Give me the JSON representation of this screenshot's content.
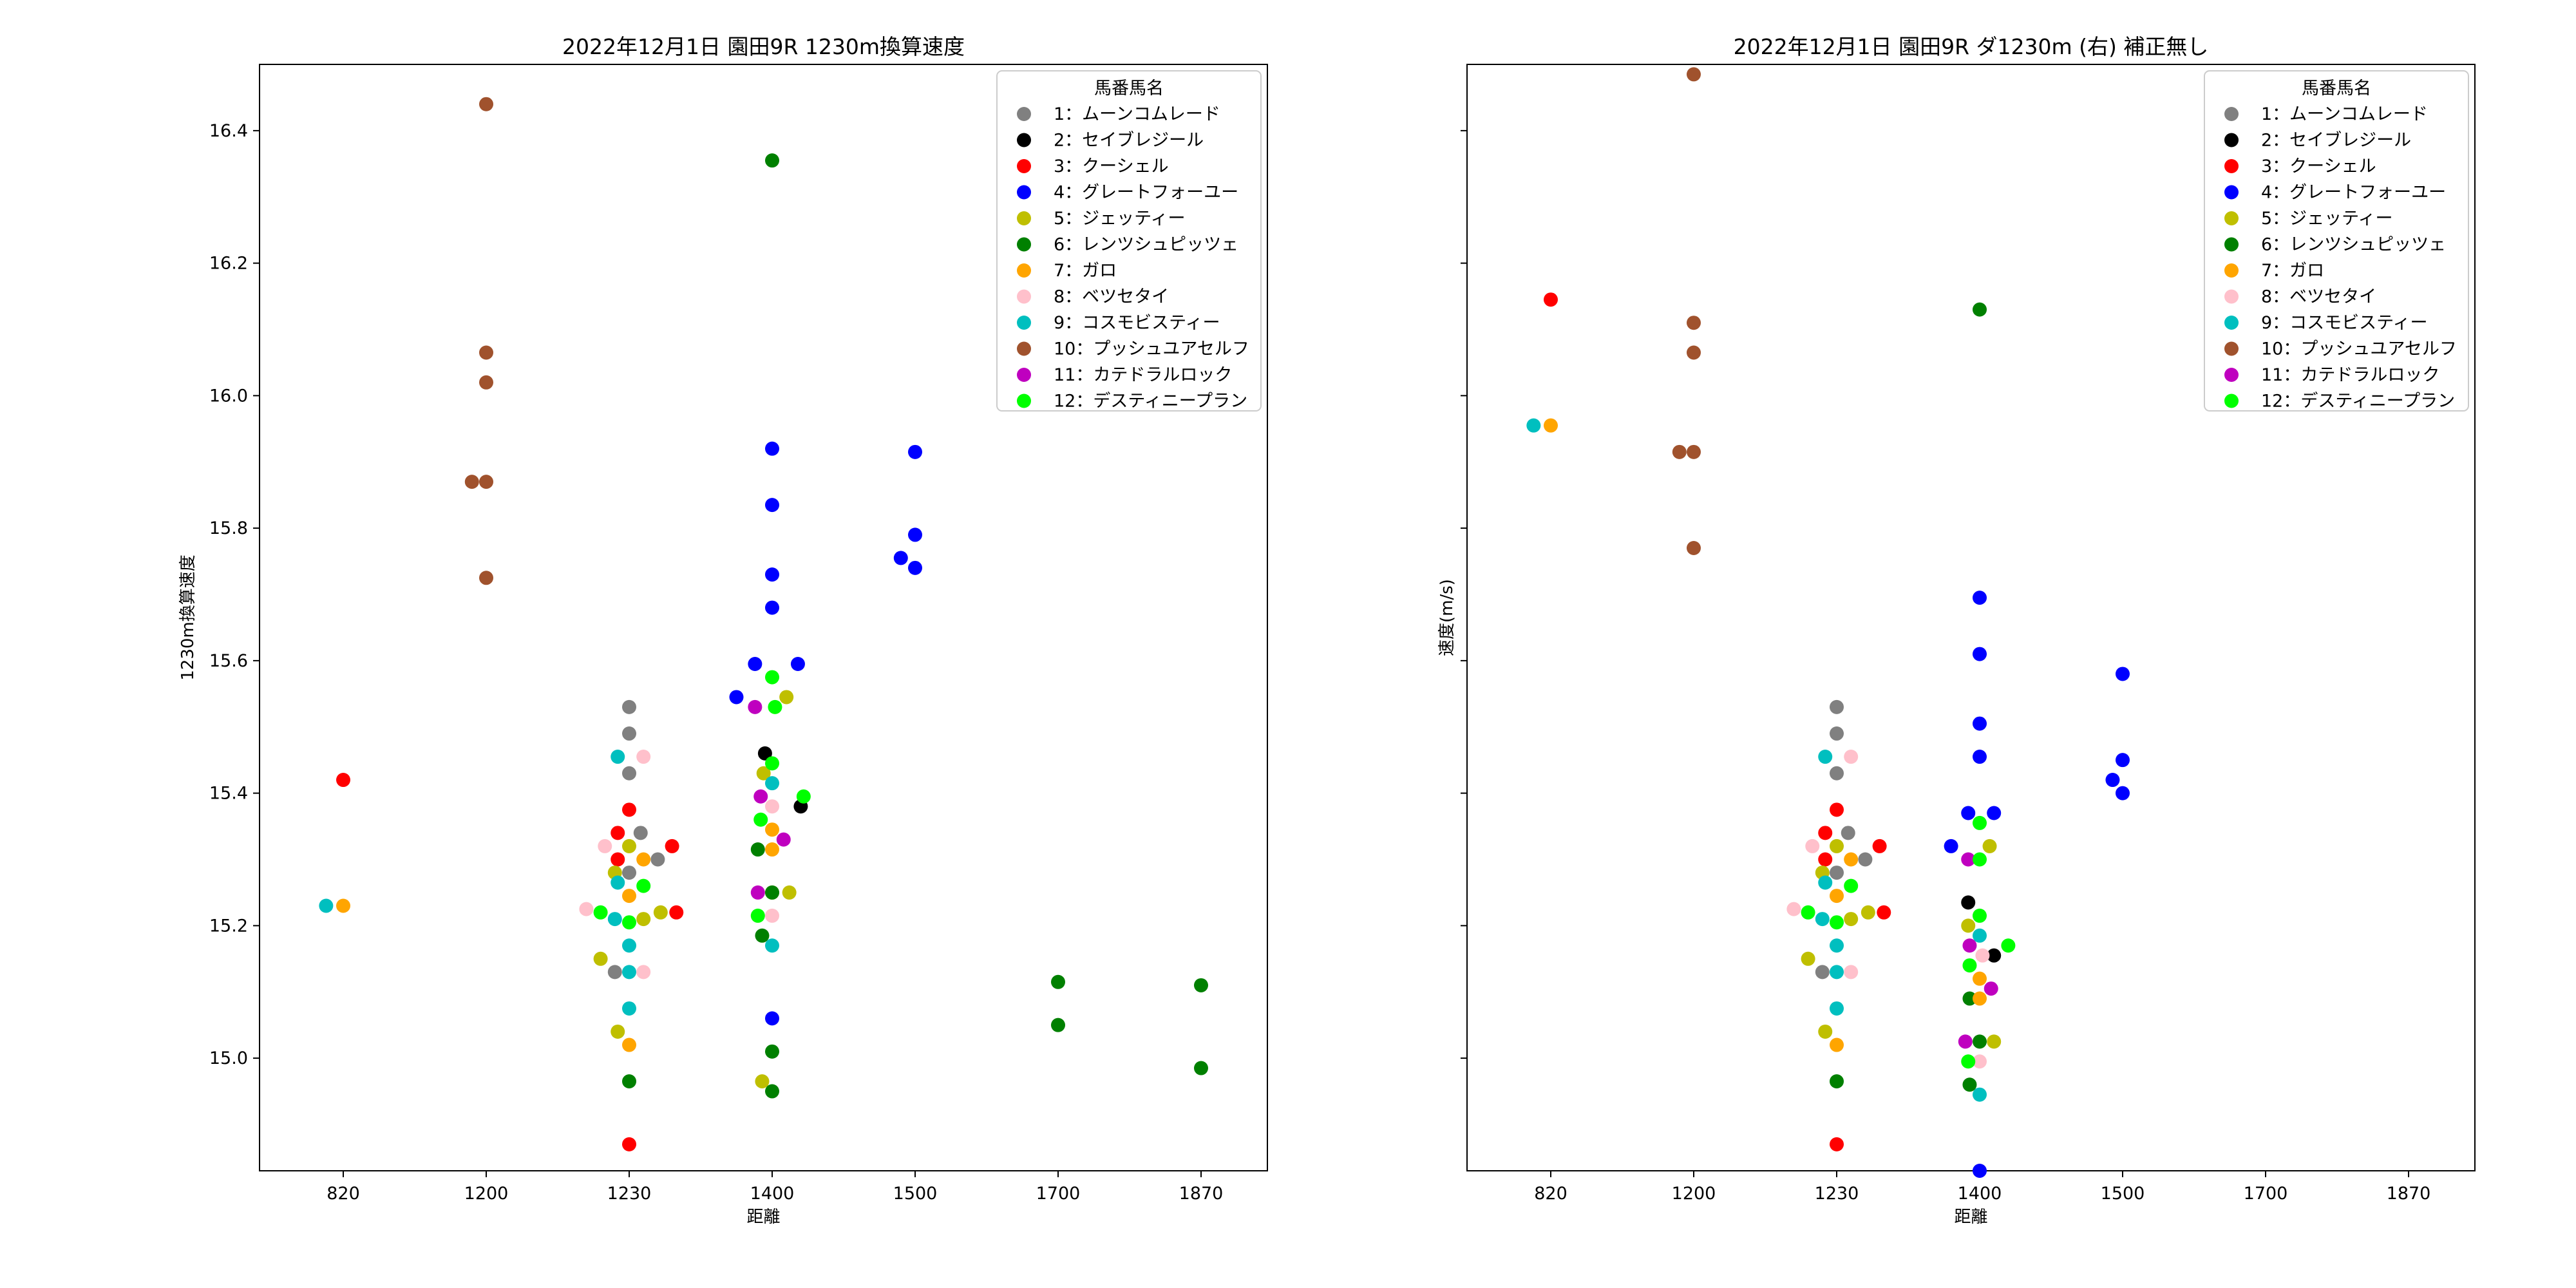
{
  "chart_data": [
    {
      "type": "scatter",
      "title": "2022年12月1日 園田9R  1230m換算速度",
      "xlabel": "距離",
      "ylabel": "1230m換算速度",
      "x_categories": [
        "820",
        "1200",
        "1230",
        "1400",
        "1500",
        "1700",
        "1870"
      ],
      "ylim": [
        14.83,
        16.5
      ],
      "yticks": [
        "15.0",
        "15.2",
        "15.4",
        "15.6",
        "15.8",
        "16.0",
        "16.2",
        "16.4"
      ],
      "grid": false,
      "legend_placement": "top-right",
      "legend_title": "馬番馬名",
      "series": [
        {
          "name": "1：ムーンコムレード",
          "color": "#808080",
          "points": [
            [
              2.0,
              15.53
            ],
            [
              2.0,
              15.49
            ],
            [
              2.0,
              15.43
            ],
            [
              2.08,
              15.34
            ],
            [
              2.2,
              15.3
            ],
            [
              2.0,
              15.28
            ],
            [
              1.9,
              15.13
            ]
          ]
        },
        {
          "name": "2：セイブレジール",
          "color": "#000000",
          "points": [
            [
              2.95,
              15.46
            ],
            [
              3.2,
              15.38
            ]
          ]
        },
        {
          "name": "3：クーシェル",
          "color": "#ff0000",
          "points": [
            [
              0.0,
              15.42
            ],
            [
              2.0,
              15.375
            ],
            [
              1.92,
              15.34
            ],
            [
              2.3,
              15.32
            ],
            [
              1.92,
              15.3
            ],
            [
              2.33,
              15.22
            ],
            [
              2.0,
              14.87
            ]
          ]
        },
        {
          "name": "4：グレートフォーユー",
          "color": "#0000ff",
          "points": [
            [
              3.0,
              15.92
            ],
            [
              3.0,
              15.835
            ],
            [
              3.0,
              15.73
            ],
            [
              3.0,
              15.68
            ],
            [
              2.88,
              15.595
            ],
            [
              3.18,
              15.595
            ],
            [
              2.75,
              15.545
            ],
            [
              3.0,
              15.06
            ],
            [
              4.0,
              15.915
            ],
            [
              4.0,
              15.79
            ],
            [
              3.9,
              15.755
            ],
            [
              4.0,
              15.74
            ]
          ]
        },
        {
          "name": "5：ジェッティー",
          "color": "#bfbf00",
          "points": [
            [
              1.9,
              15.28
            ],
            [
              2.0,
              15.32
            ],
            [
              2.22,
              15.22
            ],
            [
              2.1,
              15.21
            ],
            [
              1.8,
              15.15
            ],
            [
              1.92,
              15.04
            ],
            [
              2.94,
              15.43
            ],
            [
              3.1,
              15.545
            ],
            [
              3.0,
              15.25
            ],
            [
              3.12,
              15.25
            ],
            [
              2.93,
              14.965
            ]
          ]
        },
        {
          "name": "6：レンツシュピッツェ",
          "color": "#008000",
          "points": [
            [
              3.0,
              16.355
            ],
            [
              2.9,
              15.315
            ],
            [
              2.93,
              15.185
            ],
            [
              3.0,
              15.25
            ],
            [
              3.0,
              15.01
            ],
            [
              3.0,
              14.95
            ],
            [
              2.0,
              14.965
            ],
            [
              5.0,
              15.115
            ],
            [
              5.0,
              15.05
            ],
            [
              6.0,
              15.11
            ],
            [
              6.0,
              14.985
            ]
          ]
        },
        {
          "name": "7：ガロ",
          "color": "#ffa500",
          "points": [
            [
              0.0,
              15.23
            ],
            [
              2.1,
              15.3
            ],
            [
              2.0,
              15.245
            ],
            [
              2.0,
              15.02
            ],
            [
              3.0,
              15.315
            ],
            [
              3.0,
              15.345
            ]
          ]
        },
        {
          "name": "8：ベツセタイ",
          "color": "#ffc0cb",
          "points": [
            [
              1.83,
              15.32
            ],
            [
              2.1,
              15.455
            ],
            [
              1.7,
              15.225
            ],
            [
              2.1,
              15.13
            ],
            [
              3.0,
              15.215
            ],
            [
              3.0,
              15.38
            ]
          ]
        },
        {
          "name": "9：コスモビスティー",
          "color": "#00bfbf",
          "points": [
            [
              -0.12,
              15.23
            ],
            [
              1.92,
              15.455
            ],
            [
              1.92,
              15.265
            ],
            [
              1.9,
              15.21
            ],
            [
              2.0,
              15.17
            ],
            [
              2.0,
              15.13
            ],
            [
              2.0,
              15.075
            ],
            [
              3.0,
              15.415
            ],
            [
              3.0,
              15.17
            ]
          ]
        },
        {
          "name": "10：プッシュユアセルフ",
          "color": "#a0522d",
          "points": [
            [
              1.0,
              16.44
            ],
            [
              1.0,
              16.065
            ],
            [
              1.0,
              16.02
            ],
            [
              0.9,
              15.87
            ],
            [
              1.0,
              15.87
            ],
            [
              1.0,
              15.725
            ]
          ]
        },
        {
          "name": "11：カテドラルロック",
          "color": "#bf00bf",
          "points": [
            [
              2.88,
              15.53
            ],
            [
              2.92,
              15.395
            ],
            [
              3.08,
              15.33
            ],
            [
              2.9,
              15.25
            ]
          ]
        },
        {
          "name": "12：デスティニープラン",
          "color": "#00ff00",
          "points": [
            [
              3.0,
              15.575
            ],
            [
              3.0,
              15.445
            ],
            [
              3.22,
              15.395
            ],
            [
              2.92,
              15.36
            ],
            [
              3.02,
              15.53
            ],
            [
              1.8,
              15.22
            ],
            [
              2.0,
              15.205
            ],
            [
              2.1,
              15.26
            ],
            [
              2.9,
              15.215
            ]
          ]
        }
      ]
    },
    {
      "type": "scatter",
      "title": "2022年12月1日 園田9R   ダ1230m (右) 補正無し",
      "xlabel": "距離",
      "ylabel": "速度(m/s)",
      "x_categories": [
        "820",
        "1200",
        "1230",
        "1400",
        "1500",
        "1700",
        "1870"
      ],
      "ylim": [
        14.83,
        16.5
      ],
      "yticks": [
        "15.0",
        "15.2",
        "15.4",
        "15.6",
        "15.8",
        "16.0",
        "16.2",
        "16.4"
      ],
      "grid": false,
      "legend_placement": "top-right",
      "legend_title": "馬番馬名",
      "series": [
        {
          "name": "1：ムーンコムレード",
          "color": "#808080",
          "points": [
            [
              2.0,
              15.53
            ],
            [
              2.0,
              15.49
            ],
            [
              2.0,
              15.43
            ],
            [
              2.08,
              15.34
            ],
            [
              2.2,
              15.3
            ],
            [
              2.0,
              15.28
            ],
            [
              1.9,
              15.13
            ]
          ]
        },
        {
          "name": "2：セイブレジール",
          "color": "#000000",
          "points": [
            [
              2.92,
              15.235
            ],
            [
              3.1,
              15.155
            ]
          ]
        },
        {
          "name": "3：クーシェル",
          "color": "#ff0000",
          "points": [
            [
              0.0,
              16.145
            ],
            [
              2.0,
              15.375
            ],
            [
              1.92,
              15.34
            ],
            [
              2.3,
              15.32
            ],
            [
              1.92,
              15.3
            ],
            [
              2.33,
              15.22
            ],
            [
              2.0,
              14.87
            ]
          ]
        },
        {
          "name": "4：グレートフォーユー",
          "color": "#0000ff",
          "points": [
            [
              3.0,
              15.695
            ],
            [
              3.0,
              15.61
            ],
            [
              3.0,
              15.505
            ],
            [
              3.0,
              15.455
            ],
            [
              2.92,
              15.37
            ],
            [
              3.1,
              15.37
            ],
            [
              2.8,
              15.32
            ],
            [
              3.0,
              14.83
            ],
            [
              4.0,
              15.58
            ],
            [
              4.0,
              15.45
            ],
            [
              3.93,
              15.42
            ],
            [
              4.0,
              15.4
            ]
          ]
        },
        {
          "name": "5：ジェッティー",
          "color": "#bfbf00",
          "points": [
            [
              1.9,
              15.28
            ],
            [
              2.0,
              15.32
            ],
            [
              2.22,
              15.22
            ],
            [
              2.1,
              15.21
            ],
            [
              1.8,
              15.15
            ],
            [
              1.92,
              15.04
            ],
            [
              3.07,
              15.32
            ],
            [
              2.92,
              15.2
            ],
            [
              3.1,
              15.025
            ]
          ]
        },
        {
          "name": "6：レンツシュピッツェ",
          "color": "#008000",
          "points": [
            [
              3.0,
              16.13
            ],
            [
              2.93,
              15.09
            ],
            [
              2.93,
              14.96
            ],
            [
              3.0,
              15.025
            ],
            [
              2.0,
              14.965
            ]
          ]
        },
        {
          "name": "7：ガロ",
          "color": "#ffa500",
          "points": [
            [
              0.0,
              15.955
            ],
            [
              2.1,
              15.3
            ],
            [
              2.0,
              15.245
            ],
            [
              2.0,
              15.02
            ],
            [
              3.0,
              15.09
            ],
            [
              3.0,
              15.12
            ]
          ]
        },
        {
          "name": "8：ベツセタイ",
          "color": "#ffc0cb",
          "points": [
            [
              1.83,
              15.32
            ],
            [
              2.1,
              15.455
            ],
            [
              1.7,
              15.225
            ],
            [
              2.1,
              15.13
            ],
            [
              3.0,
              14.995
            ],
            [
              3.02,
              15.155
            ]
          ]
        },
        {
          "name": "9：コスモビスティー",
          "color": "#00bfbf",
          "points": [
            [
              -0.12,
              15.955
            ],
            [
              1.92,
              15.455
            ],
            [
              1.92,
              15.265
            ],
            [
              1.9,
              15.21
            ],
            [
              2.0,
              15.17
            ],
            [
              2.0,
              15.13
            ],
            [
              2.0,
              15.075
            ],
            [
              3.0,
              15.185
            ],
            [
              3.0,
              14.945
            ]
          ]
        },
        {
          "name": "10：プッシュユアセルフ",
          "color": "#a0522d",
          "points": [
            [
              1.0,
              16.485
            ],
            [
              1.0,
              16.11
            ],
            [
              1.0,
              16.065
            ],
            [
              0.9,
              15.915
            ],
            [
              1.0,
              15.915
            ],
            [
              1.0,
              15.77
            ]
          ]
        },
        {
          "name": "11：カテドラルロック",
          "color": "#bf00bf",
          "points": [
            [
              2.92,
              15.3
            ],
            [
              2.93,
              15.17
            ],
            [
              3.08,
              15.105
            ],
            [
              2.9,
              15.025
            ]
          ]
        },
        {
          "name": "12：デスティニープラン",
          "color": "#00ff00",
          "points": [
            [
              3.0,
              15.355
            ],
            [
              3.0,
              15.3
            ],
            [
              3.2,
              15.17
            ],
            [
              2.93,
              15.14
            ],
            [
              3.0,
              15.215
            ],
            [
              2.92,
              14.995
            ],
            [
              1.8,
              15.22
            ],
            [
              2.0,
              15.205
            ],
            [
              2.1,
              15.26
            ]
          ]
        }
      ]
    }
  ]
}
